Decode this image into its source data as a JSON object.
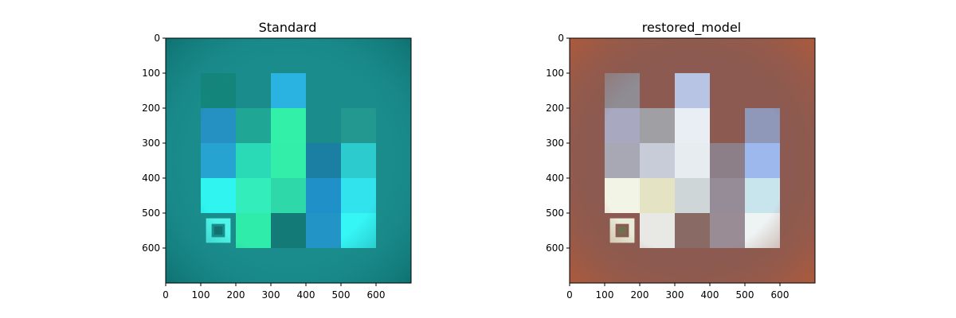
{
  "chart_data": [
    {
      "type": "heatmap",
      "title": "Standard",
      "xlabel": "",
      "ylabel": "",
      "xlim": [
        0,
        700
      ],
      "ylim": [
        700,
        0
      ],
      "x_ticks": [
        0,
        100,
        200,
        300,
        400,
        500,
        600
      ],
      "y_ticks": [
        0,
        100,
        200,
        300,
        400,
        500,
        600
      ],
      "image": {
        "background": "#1a8c8c",
        "border_shade": "#0e6f6f",
        "squares": [
          {
            "x": 100,
            "y": 100,
            "w": 100,
            "h": 100,
            "color": "#14857a"
          },
          {
            "x": 100,
            "y": 200,
            "w": 100,
            "h": 100,
            "color": "#2590c2"
          },
          {
            "x": 100,
            "y": 300,
            "w": 100,
            "h": 100,
            "color": "#26a3d0"
          },
          {
            "x": 100,
            "y": 400,
            "w": 100,
            "h": 100,
            "color": "#30f4f0"
          },
          {
            "x": 200,
            "y": 200,
            "w": 100,
            "h": 100,
            "color": "#1fa695"
          },
          {
            "x": 200,
            "y": 300,
            "w": 100,
            "h": 100,
            "color": "#2ad9b6"
          },
          {
            "x": 200,
            "y": 400,
            "w": 100,
            "h": 100,
            "color": "#33eebb"
          },
          {
            "x": 200,
            "y": 500,
            "w": 100,
            "h": 100,
            "color": "#30ecaa"
          },
          {
            "x": 300,
            "y": 100,
            "w": 100,
            "h": 100,
            "color": "#2ab3e0"
          },
          {
            "x": 300,
            "y": 200,
            "w": 100,
            "h": 100,
            "color": "#33f0a8"
          },
          {
            "x": 300,
            "y": 300,
            "w": 100,
            "h": 100,
            "color": "#33eea8"
          },
          {
            "x": 300,
            "y": 400,
            "w": 100,
            "h": 100,
            "color": "#2ed8a8"
          },
          {
            "x": 300,
            "y": 500,
            "w": 100,
            "h": 100,
            "color": "#147a78"
          },
          {
            "x": 400,
            "y": 300,
            "w": 100,
            "h": 100,
            "color": "#1a7fa2"
          },
          {
            "x": 400,
            "y": 400,
            "w": 100,
            "h": 100,
            "color": "#1f90c8"
          },
          {
            "x": 400,
            "y": 500,
            "w": 100,
            "h": 100,
            "color": "#2394c6"
          },
          {
            "x": 500,
            "y": 200,
            "w": 100,
            "h": 100,
            "color": "#229890"
          },
          {
            "x": 500,
            "y": 300,
            "w": 100,
            "h": 100,
            "color": "#2cccce"
          },
          {
            "x": 500,
            "y": 400,
            "w": 100,
            "h": 100,
            "color": "#31e3ec"
          },
          {
            "x": 500,
            "y": 500,
            "w": 100,
            "h": 100,
            "color": "#35f5f5"
          }
        ],
        "marker": {
          "cx": 150,
          "cy": 550,
          "outer": 70,
          "inner": 38,
          "core": 24,
          "ring_color": "#4ff5e8",
          "core_color": "#127070"
        }
      }
    },
    {
      "type": "heatmap",
      "title": "restored_model",
      "xlabel": "",
      "ylabel": "",
      "xlim": [
        0,
        700
      ],
      "ylim": [
        700,
        0
      ],
      "x_ticks": [
        0,
        100,
        200,
        300,
        400,
        500,
        600
      ],
      "y_ticks": [
        0,
        100,
        200,
        300,
        400,
        500,
        600
      ],
      "image": {
        "background": "#8c5a50",
        "border_shade": "#b05a3a",
        "squares": [
          {
            "x": 100,
            "y": 100,
            "w": 100,
            "h": 100,
            "color": "#8f8c94"
          },
          {
            "x": 100,
            "y": 200,
            "w": 100,
            "h": 100,
            "color": "#a8a8c0"
          },
          {
            "x": 100,
            "y": 300,
            "w": 100,
            "h": 100,
            "color": "#a8a8b4"
          },
          {
            "x": 100,
            "y": 400,
            "w": 100,
            "h": 100,
            "color": "#f2f4e6"
          },
          {
            "x": 200,
            "y": 200,
            "w": 100,
            "h": 100,
            "color": "#a0a0a4"
          },
          {
            "x": 200,
            "y": 300,
            "w": 100,
            "h": 100,
            "color": "#c8ccd8"
          },
          {
            "x": 200,
            "y": 400,
            "w": 100,
            "h": 100,
            "color": "#e4e4c4"
          },
          {
            "x": 200,
            "y": 500,
            "w": 100,
            "h": 100,
            "color": "#e8e8e4"
          },
          {
            "x": 300,
            "y": 100,
            "w": 100,
            "h": 100,
            "color": "#b8c4e4"
          },
          {
            "x": 300,
            "y": 200,
            "w": 100,
            "h": 100,
            "color": "#e8eef4"
          },
          {
            "x": 300,
            "y": 300,
            "w": 100,
            "h": 100,
            "color": "#e6ecf0"
          },
          {
            "x": 300,
            "y": 400,
            "w": 100,
            "h": 100,
            "color": "#cfd6d8"
          },
          {
            "x": 300,
            "y": 500,
            "w": 100,
            "h": 100,
            "color": "#8a6a64"
          },
          {
            "x": 400,
            "y": 300,
            "w": 100,
            "h": 100,
            "color": "#8c7f88"
          },
          {
            "x": 400,
            "y": 400,
            "w": 100,
            "h": 100,
            "color": "#968c98"
          },
          {
            "x": 400,
            "y": 500,
            "w": 100,
            "h": 100,
            "color": "#9a8c94"
          },
          {
            "x": 500,
            "y": 200,
            "w": 100,
            "h": 100,
            "color": "#8f98b8"
          },
          {
            "x": 500,
            "y": 300,
            "w": 100,
            "h": 100,
            "color": "#9cb8ec"
          },
          {
            "x": 500,
            "y": 400,
            "w": 100,
            "h": 100,
            "color": "#c8e4ec"
          },
          {
            "x": 500,
            "y": 500,
            "w": 100,
            "h": 100,
            "color": "#eef4f4"
          }
        ],
        "marker": {
          "cx": 150,
          "cy": 550,
          "outer": 70,
          "inner": 38,
          "core": 24,
          "ring_color": "#e8ecd8",
          "core_color": "#707050"
        }
      }
    }
  ]
}
